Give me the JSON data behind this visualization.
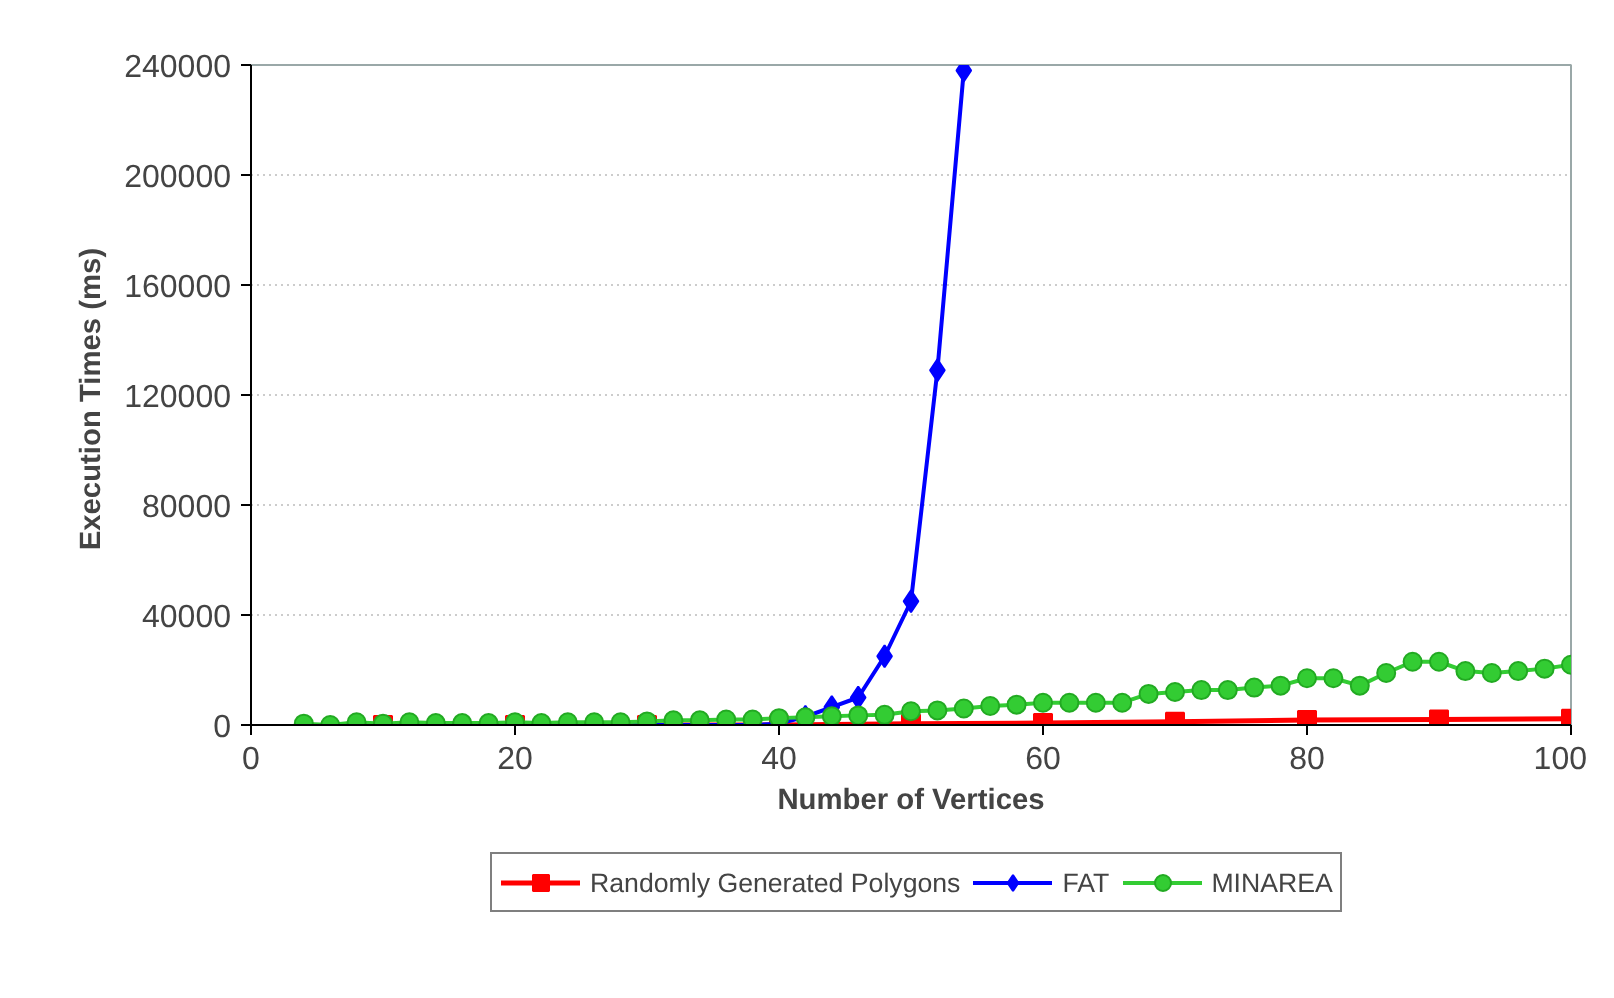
{
  "chart_data": {
    "type": "line",
    "xlabel": "Number of Vertices",
    "ylabel": "Execution Times  (ms)",
    "xlim": [
      0,
      100
    ],
    "xticks": [
      0,
      20,
      40,
      60,
      80,
      100
    ],
    "ylim": [
      0,
      240000
    ],
    "yticks": [
      0,
      40000,
      80000,
      120000,
      160000,
      200000,
      240000
    ],
    "grid": "y",
    "legend": "bottom",
    "series": [
      {
        "name": "Randomly Generated Polygons",
        "color": "#ff0000",
        "marker": "square",
        "x": [
          10,
          20,
          30,
          40,
          50,
          60,
          70,
          80,
          90,
          100
        ],
        "values": [
          0,
          0,
          0,
          0,
          500,
          700,
          1200,
          1800,
          2000,
          2300
        ]
      },
      {
        "name": "FAT",
        "color": "#0000ff",
        "marker": "diamond",
        "x": [
          28,
          30,
          32,
          34,
          36,
          38,
          40,
          42,
          44,
          46,
          48,
          50,
          52,
          54
        ],
        "values": [
          0,
          0,
          0,
          0,
          0,
          0,
          500,
          3000,
          6500,
          10000,
          25000,
          45000,
          129000,
          238000
        ]
      },
      {
        "name": "MINAREA",
        "color": "#33cc33",
        "marker": "circle",
        "x": [
          4,
          6,
          8,
          10,
          12,
          14,
          16,
          18,
          20,
          22,
          24,
          26,
          28,
          30,
          32,
          34,
          36,
          38,
          40,
          42,
          44,
          46,
          48,
          50,
          52,
          54,
          56,
          58,
          60,
          62,
          64,
          66,
          68,
          70,
          72,
          74,
          76,
          78,
          80,
          82,
          84,
          86,
          88,
          90,
          92,
          94,
          96,
          98,
          100
        ],
        "values": [
          500,
          0,
          1000,
          500,
          1000,
          700,
          700,
          700,
          1000,
          700,
          1000,
          1000,
          1000,
          1300,
          1700,
          1700,
          2000,
          2000,
          2500,
          2800,
          3200,
          3500,
          3700,
          5000,
          5300,
          6000,
          6900,
          7400,
          8100,
          8100,
          8100,
          8100,
          11300,
          12000,
          12700,
          12700,
          13600,
          14300,
          17000,
          17000,
          14300,
          18900,
          23000,
          23000,
          19600,
          18900,
          19600,
          20500,
          21900
        ]
      }
    ]
  }
}
